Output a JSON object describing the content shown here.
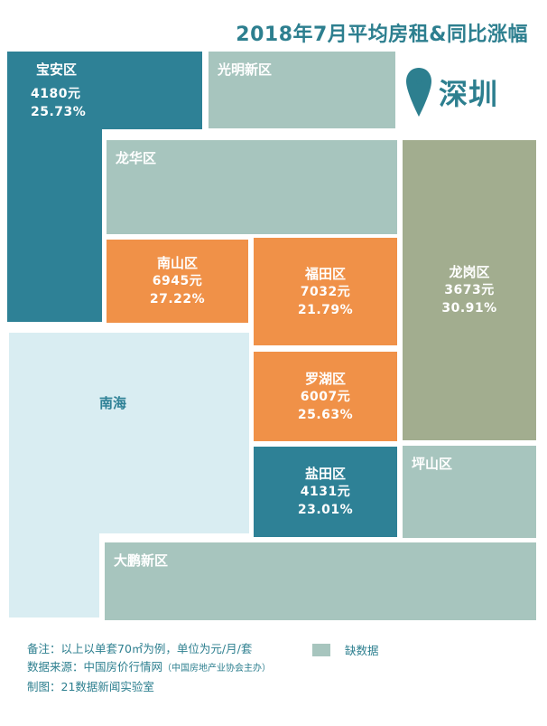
{
  "title": "2018年7月平均房租&同比涨幅",
  "city": {
    "name": "深圳",
    "icon": "map-pin-icon",
    "icon_color": "#2d7f8f"
  },
  "colors": {
    "teal": "#2e8196",
    "orange": "#f09148",
    "no_data": "#a7c5be",
    "olive": "#a2ad8f",
    "sea": "#d9edf2",
    "text": "#2d7f8f"
  },
  "districts": {
    "baoan": {
      "name": "宝安区",
      "rent": "4180元",
      "change": "25.73%"
    },
    "guangming": {
      "name": "光明新区"
    },
    "longhua": {
      "name": "龙华区"
    },
    "nanshan": {
      "name": "南山区",
      "rent": "6945元",
      "change": "27.22%"
    },
    "futian": {
      "name": "福田区",
      "rent": "7032元",
      "change": "21.79%"
    },
    "longgang": {
      "name": "龙岗区",
      "rent": "3673元",
      "change": "30.91%"
    },
    "luohu": {
      "name": "罗湖区",
      "rent": "6007元",
      "change": "25.63%"
    },
    "yantian": {
      "name": "盐田区",
      "rent": "4131元",
      "change": "23.01%"
    },
    "pingshan": {
      "name": "坪山区"
    },
    "dapeng": {
      "name": "大鹏新区"
    },
    "nanhai": {
      "name": "南海"
    }
  },
  "footer": {
    "note": "备注：以上以单套70㎡为例，单位为元/月/套",
    "source": "数据来源：中国房价行情网",
    "source_note": "（中国房地产业协会主办）",
    "credit": "制图：21数据新闻实验室"
  },
  "legend": {
    "label": "缺数据"
  }
}
